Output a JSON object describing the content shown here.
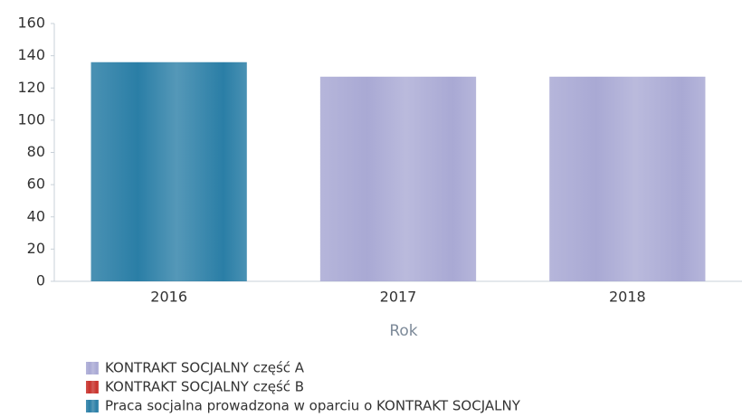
{
  "chart_data": {
    "type": "stacked_bar",
    "categories": [
      "2016",
      "2017",
      "2018"
    ],
    "series": [
      {
        "name": "KONTRAKT SOCJALNY część A",
        "color": "#a9a9d4",
        "values": [
          0,
          127,
          127
        ]
      },
      {
        "name": "KONTRAKT SOCJALNY część B",
        "color": "#c8322c",
        "values": [
          0,
          0,
          0
        ]
      },
      {
        "name": "Praca socjalna prowadzona w oparciu o KONTRAKT SOCJALNY",
        "color": "#2a7ea6",
        "values": [
          136,
          0,
          0
        ]
      }
    ],
    "x_label": "Rok",
    "ylim": [
      0,
      160
    ],
    "yticks": [
      0,
      20,
      40,
      60,
      80,
      100,
      120,
      140,
      160
    ],
    "grid": false
  }
}
